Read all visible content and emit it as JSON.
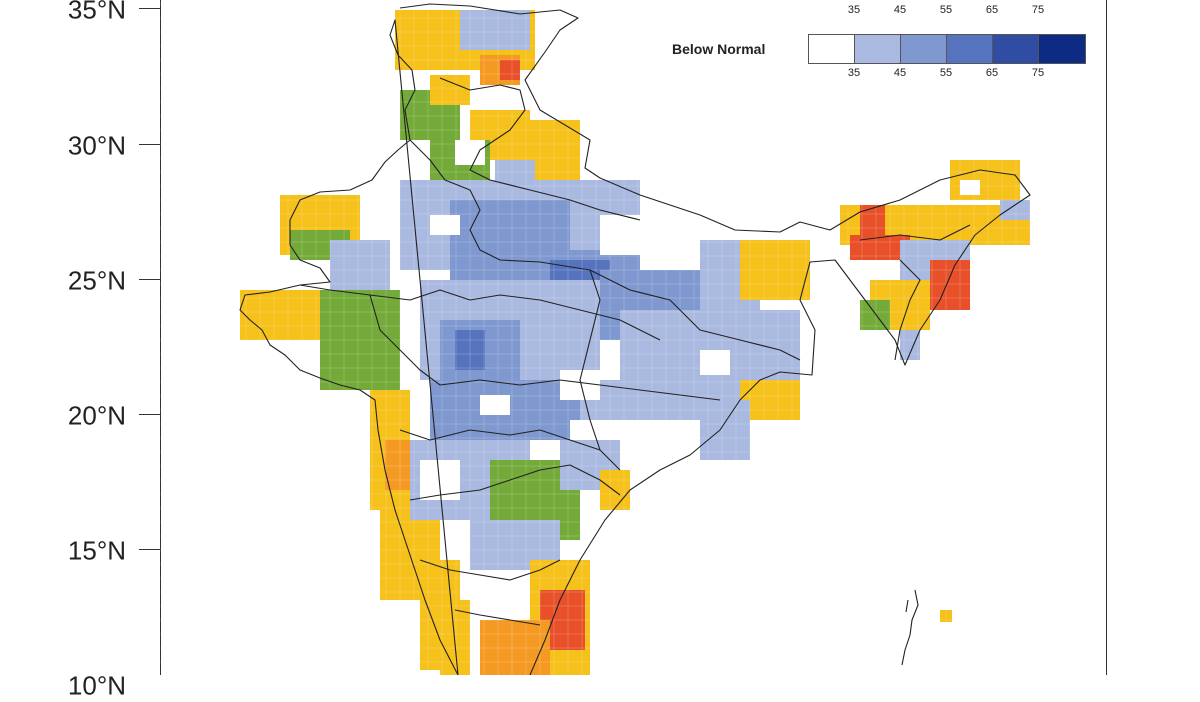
{
  "axis": {
    "lat_ticks": [
      "35°N",
      "30°N",
      "25°N",
      "20°N",
      "15°N",
      "10°N"
    ]
  },
  "legend": {
    "top_row_ticks": [
      "35",
      "45",
      "55",
      "65",
      "75"
    ],
    "below_normal": {
      "label": "Below Normal",
      "ticks": [
        "35",
        "45",
        "55",
        "65",
        "75"
      ],
      "colors": [
        "#ffffff",
        "#a9b9df",
        "#7f98d0",
        "#5673be",
        "#2f4ea3",
        "#0d2b83"
      ]
    }
  },
  "colors": {
    "above_normal": "#f6c11a",
    "above_normal_high": "#f49a23",
    "above_normal_extreme": "#e8502a",
    "normal": "#73aa39",
    "below_light": "#a9b9df",
    "below_mid": "#7f98d0",
    "below_dark": "#5673be",
    "boundary": "#222222"
  }
}
